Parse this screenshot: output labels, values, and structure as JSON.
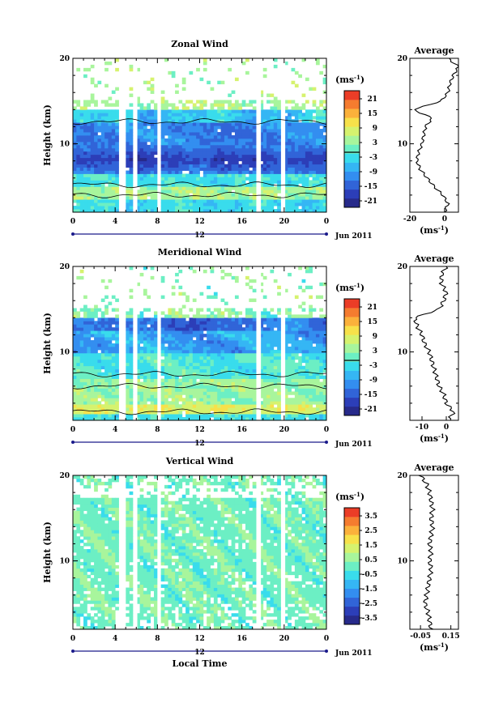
{
  "footer": {
    "xlabel": "Local Time"
  },
  "chart_data": [
    {
      "type": "heatmap",
      "title": "Zonal Wind",
      "ylabel": "Height (km)",
      "ylim": [
        2,
        20
      ],
      "yticks": [
        10,
        20
      ],
      "xlim": [
        0,
        24
      ],
      "xtick_labels": [
        "0",
        "4",
        "8",
        "12",
        "16",
        "20",
        "0"
      ],
      "date_marker": "12",
      "date_label": "Jun 2011",
      "colorbar": {
        "unit": "(ms",
        "unit_exp": "-1",
        "unit_close": ")",
        "tick_labels": [
          "21",
          "15",
          "9",
          "3",
          "-3",
          "-9",
          "-15",
          "-21"
        ],
        "range": [
          -24,
          24
        ],
        "colors": [
          "#272a8a",
          "#2c3eb8",
          "#3164d8",
          "#338ef0",
          "#35b6f4",
          "#39dcec",
          "#6cefc4",
          "#a8f59c",
          "#d6f26e",
          "#f7e14a",
          "#fbb13b",
          "#f57c2f",
          "#eb3d27"
        ]
      },
      "profile": {
        "title": "Average",
        "xlim": [
          -20,
          8
        ],
        "xtick_labels": [
          "-20",
          "0"
        ],
        "xlabel": "(ms",
        "xlabel_exp": "-1",
        "xlabel_close": ")",
        "heights": [
          2,
          3,
          4,
          5,
          6,
          7,
          8,
          9,
          10,
          11,
          12,
          13,
          14,
          15,
          16,
          17,
          18,
          19,
          20
        ],
        "values": [
          0,
          2,
          -1,
          -6,
          -10,
          -14,
          -16,
          -15,
          -13,
          -12,
          -11,
          -7,
          -18,
          -2,
          2,
          3,
          5,
          8,
          2
        ]
      },
      "gaps": [
        [
          4.5,
          5.0
        ],
        [
          5.8,
          6.1
        ],
        [
          8.0,
          8.3
        ],
        [
          17.5,
          17.8
        ],
        [
          19.8,
          20.1
        ]
      ]
    },
    {
      "type": "heatmap",
      "title": "Meridional Wind",
      "ylabel": "Height (km)",
      "ylim": [
        2,
        20
      ],
      "yticks": [
        10,
        20
      ],
      "xlim": [
        0,
        24
      ],
      "xtick_labels": [
        "0",
        "4",
        "8",
        "12",
        "16",
        "20",
        "0"
      ],
      "date_marker": "12",
      "date_label": "Jun 2011",
      "colorbar": {
        "unit": "(ms",
        "unit_exp": "-1",
        "unit_close": ")",
        "tick_labels": [
          "21",
          "15",
          "9",
          "3",
          "-3",
          "-9",
          "-15",
          "-21"
        ],
        "range": [
          -24,
          24
        ],
        "colors": [
          "#272a8a",
          "#2c3eb8",
          "#3164d8",
          "#338ef0",
          "#35b6f4",
          "#39dcec",
          "#6cefc4",
          "#a8f59c",
          "#d6f26e",
          "#f7e14a",
          "#fbb13b",
          "#f57c2f",
          "#eb3d27"
        ]
      },
      "profile": {
        "title": "Average",
        "xlim": [
          -15,
          5
        ],
        "xtick_labels": [
          "-10",
          "0"
        ],
        "xlabel": "(ms",
        "xlabel_exp": "-1",
        "xlabel_close": ")",
        "heights": [
          2,
          3,
          4,
          5,
          6,
          7,
          8,
          9,
          10,
          11,
          12,
          13,
          14,
          15,
          16,
          17,
          18,
          19,
          20
        ],
        "values": [
          1,
          3,
          0,
          -1,
          -3,
          -4,
          -5,
          -6,
          -7,
          -9,
          -10,
          -12,
          -13,
          -3,
          -1,
          0,
          -2,
          -2,
          0
        ]
      },
      "gaps": [
        [
          4.5,
          5.0
        ],
        [
          5.8,
          6.1
        ],
        [
          8.0,
          8.3
        ],
        [
          17.5,
          17.8
        ],
        [
          19.8,
          20.1
        ]
      ]
    },
    {
      "type": "heatmap",
      "title": "Vertical Wind",
      "ylabel": "Height (km)",
      "ylim": [
        2,
        20
      ],
      "yticks": [
        10,
        20
      ],
      "xlim": [
        0,
        24
      ],
      "xtick_labels": [
        "0",
        "4",
        "8",
        "12",
        "16",
        "20",
        "0"
      ],
      "date_marker": "12",
      "date_label": "Jun 2011",
      "colorbar": {
        "unit": "(ms",
        "unit_exp": "-1",
        "unit_close": ")",
        "tick_labels": [
          "3.5",
          "2.5",
          "1.5",
          "0.5",
          "-0.5",
          "-1.5",
          "-2.5",
          "-3.5"
        ],
        "range": [
          -4,
          4
        ],
        "colors": [
          "#272a8a",
          "#2c3eb8",
          "#3164d8",
          "#338ef0",
          "#35b6f4",
          "#39dcec",
          "#6cefc4",
          "#a8f59c",
          "#d6f26e",
          "#f7e14a",
          "#fbb13b",
          "#f57c2f",
          "#eb3d27"
        ]
      },
      "profile": {
        "title": "Average",
        "xlim": [
          -0.12,
          0.2
        ],
        "xtick_labels": [
          "-0.05",
          "0.15"
        ],
        "xlabel": "(ms",
        "xlabel_exp": "-1",
        "xlabel_close": ")",
        "heights": [
          2,
          3,
          4,
          5,
          6,
          7,
          8,
          9,
          10,
          11,
          12,
          13,
          14,
          15,
          16,
          17,
          18,
          19,
          20
        ],
        "values": [
          0.02,
          0.01,
          0.0,
          -0.02,
          -0.01,
          0.0,
          0.01,
          0.02,
          0.01,
          0.02,
          0.01,
          0.02,
          0.03,
          0.02,
          0.03,
          0.02,
          0.01,
          -0.01,
          -0.05
        ]
      },
      "gaps": [
        [
          4.5,
          5.0
        ],
        [
          5.8,
          6.1
        ],
        [
          8.0,
          8.3
        ],
        [
          17.5,
          17.8
        ],
        [
          19.8,
          20.1
        ]
      ]
    }
  ]
}
